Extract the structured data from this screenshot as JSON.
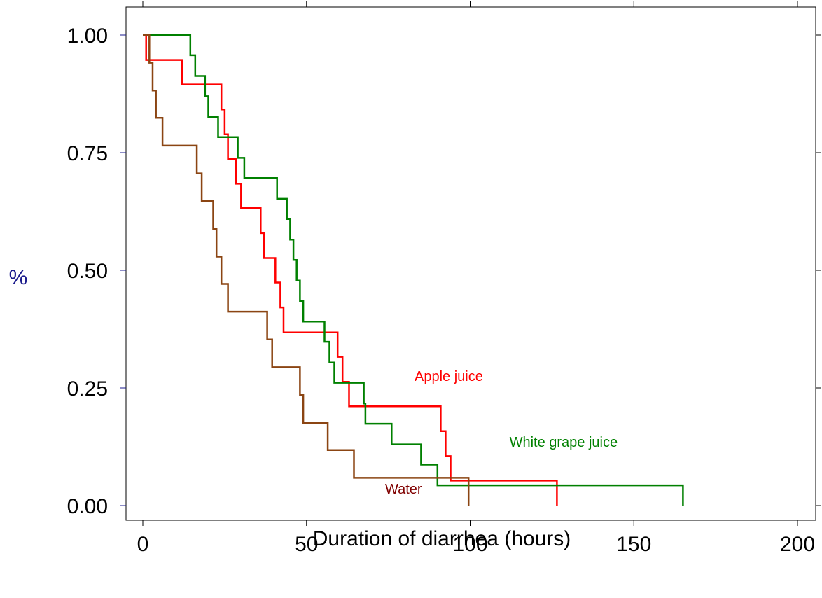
{
  "chart_data": {
    "type": "line",
    "subtype": "step",
    "xlabel": "Duration of diarrhea (hours)",
    "ylabel": "%",
    "xlim": [
      0,
      200
    ],
    "ylim": [
      0,
      1
    ],
    "xticks": [
      "0",
      "50",
      "100",
      "150",
      "200"
    ],
    "yticks": [
      "0.00",
      "0.25",
      "0.50",
      "0.75",
      "1.00"
    ],
    "grid": false,
    "legend": "inline labels",
    "series": [
      {
        "name": "Apple juice",
        "color": "#ff0000",
        "x": [
          0,
          1,
          12,
          24,
          25,
          26,
          28.5,
          30,
          36,
          37,
          40.5,
          42,
          43,
          47,
          59.5,
          61,
          63,
          91,
          92.5,
          94,
          126.5
        ],
        "y": [
          1.0,
          0.947,
          0.895,
          0.842,
          0.789,
          0.737,
          0.684,
          0.632,
          0.579,
          0.526,
          0.474,
          0.421,
          0.368,
          0.368,
          0.316,
          0.263,
          0.211,
          0.158,
          0.105,
          0.053,
          0.0
        ]
      },
      {
        "name": "White grape juice",
        "color": "#008000",
        "x": [
          0,
          14.5,
          16,
          19,
          20,
          23,
          29,
          31,
          34,
          41,
          44,
          45,
          46,
          47,
          48,
          49,
          55.5,
          57,
          58.5,
          61,
          67.5,
          68,
          76,
          85,
          90,
          165
        ],
        "y": [
          1.0,
          0.957,
          0.913,
          0.87,
          0.826,
          0.783,
          0.739,
          0.696,
          0.696,
          0.652,
          0.609,
          0.565,
          0.522,
          0.478,
          0.435,
          0.391,
          0.348,
          0.304,
          0.261,
          0.261,
          0.217,
          0.174,
          0.13,
          0.087,
          0.043,
          0.0
        ]
      },
      {
        "name": "Water",
        "color": "#8b4513",
        "x": [
          0,
          2,
          3,
          4,
          6,
          16.5,
          18,
          20.5,
          21.5,
          22.5,
          24,
          26,
          38,
          39.5,
          41,
          48,
          49,
          56.5,
          64.5,
          99.5
        ],
        "y": [
          1.0,
          0.941,
          0.882,
          0.824,
          0.765,
          0.706,
          0.647,
          0.647,
          0.588,
          0.529,
          0.471,
          0.412,
          0.353,
          0.294,
          0.294,
          0.235,
          0.176,
          0.118,
          0.059,
          0.0
        ]
      }
    ],
    "annotations": [
      {
        "text": "Apple juice",
        "x": 83,
        "y": 0.265,
        "color": "#ff0000"
      },
      {
        "text": "White grape juice",
        "x": 112,
        "y": 0.125,
        "color": "#008000"
      },
      {
        "text": "Water",
        "x": 74,
        "y": 0.025,
        "color": "#800000"
      }
    ]
  }
}
